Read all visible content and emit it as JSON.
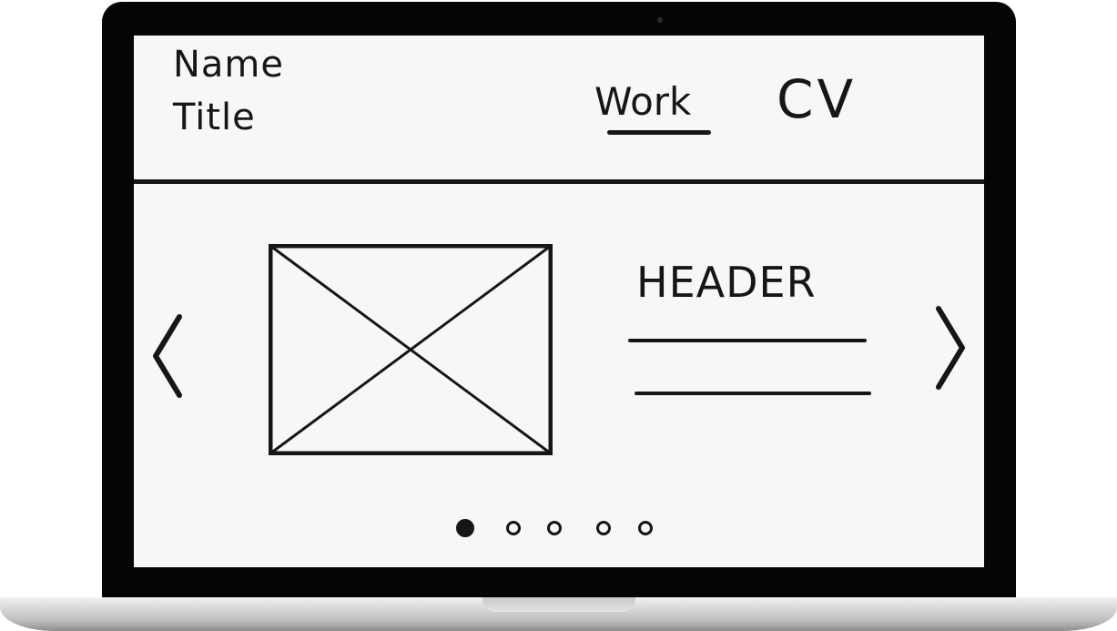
{
  "header": {
    "name": "Name",
    "title": "Title",
    "nav": [
      {
        "label": "Work",
        "active": true
      },
      {
        "label": "CV",
        "active": false
      }
    ]
  },
  "carousel": {
    "prev_icon": "chevron-left-icon",
    "next_icon": "chevron-right-icon",
    "slide": {
      "image": "image-placeholder",
      "heading": "HEADER",
      "body_lines": 2
    },
    "pagination": {
      "total": 5,
      "active_index": 0
    }
  },
  "colors": {
    "ink": "#161616",
    "paper": "#f7f7f5",
    "bezel": "#050505"
  }
}
